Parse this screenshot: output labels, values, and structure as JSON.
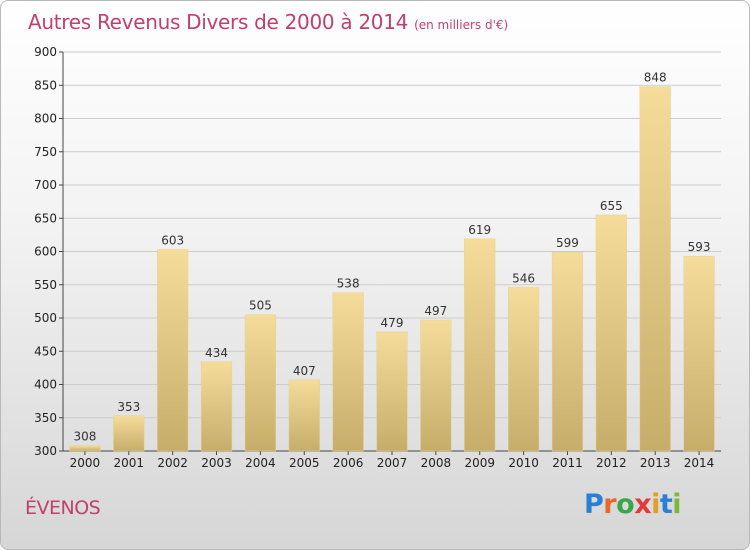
{
  "title": "Autres Revenus Divers de 2000 à 2014",
  "unit": "(en milliers d'€)",
  "place": "ÉVENOS",
  "logo": {
    "text": "Proxiti",
    "letters": [
      {
        "ch": "P",
        "color": "#2a7fd4"
      },
      {
        "ch": "r",
        "color": "#e8692a"
      },
      {
        "ch": "o",
        "color": "#3aa64a"
      },
      {
        "ch": "x",
        "color": "#e23a3a"
      },
      {
        "ch": "i",
        "color": "#e0a020"
      },
      {
        "ch": "t",
        "color": "#2a7fd4"
      },
      {
        "ch": "i",
        "color": "#7ab83a"
      }
    ]
  },
  "colors": {
    "bar_top": "#f5dc9a",
    "bar_bottom": "#c6ad6a",
    "grid": "#cccccc",
    "title": "#c0406b"
  },
  "chart_data": {
    "type": "bar",
    "title": "Autres Revenus Divers de 2000 à 2014",
    "xlabel": "",
    "ylabel": "",
    "categories": [
      "2000",
      "2001",
      "2002",
      "2003",
      "2004",
      "2005",
      "2006",
      "2007",
      "2008",
      "2009",
      "2010",
      "2011",
      "2012",
      "2013",
      "2014"
    ],
    "values": [
      308,
      353,
      603,
      434,
      505,
      407,
      538,
      479,
      497,
      619,
      546,
      599,
      655,
      848,
      593
    ],
    "ylim": [
      300,
      900
    ],
    "yticks": [
      300,
      350,
      400,
      450,
      500,
      550,
      600,
      650,
      700,
      750,
      800,
      850,
      900
    ],
    "grid": true
  }
}
